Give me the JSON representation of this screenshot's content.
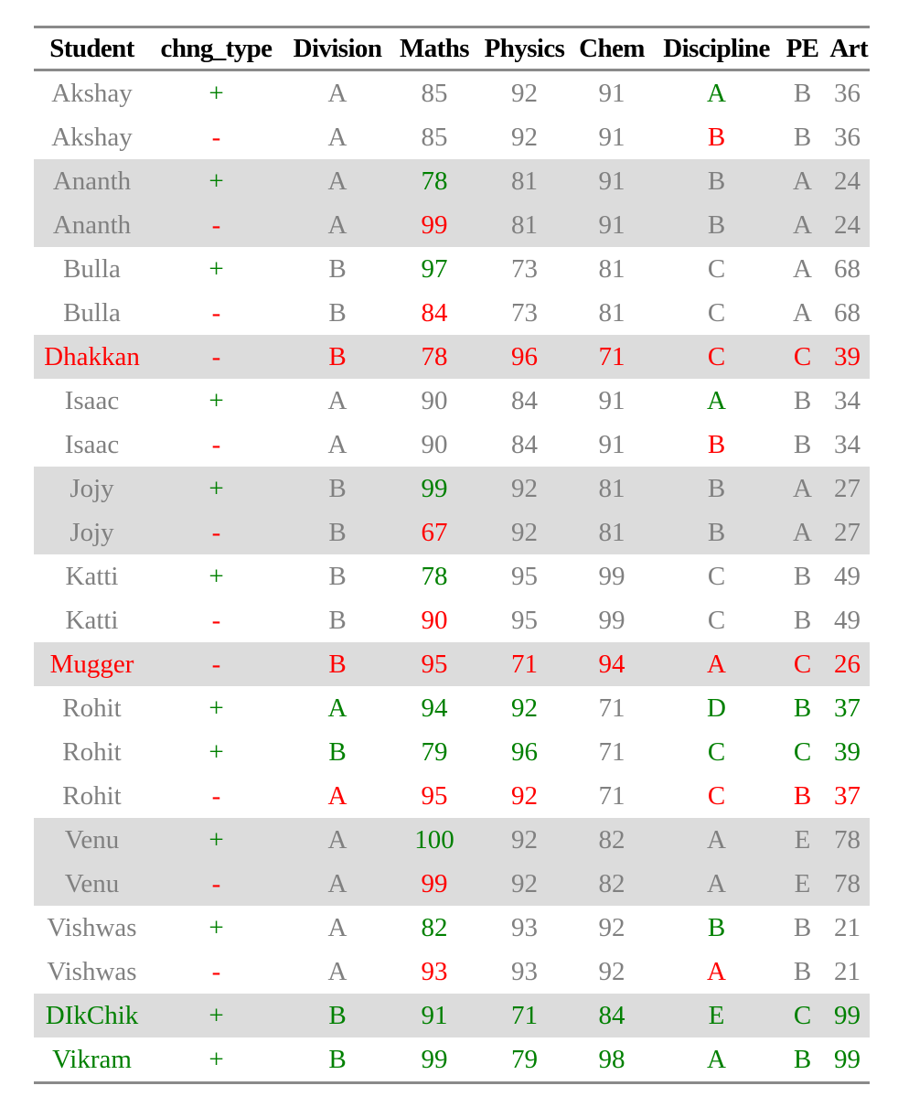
{
  "columns": [
    "Student",
    "chng_type",
    "Division",
    "Maths",
    "Physics",
    "Chem",
    "Discipline",
    "PE",
    "Art"
  ],
  "colors": {
    "green": "#008000",
    "red": "#ff0000",
    "gray": "#808080",
    "shade": "#dcdcdc"
  },
  "rows": [
    {
      "cells": [
        "Akshay",
        "+",
        "A",
        "85",
        "92",
        "91",
        "A",
        "B",
        "36"
      ],
      "colors": [
        "k",
        "g",
        "k",
        "k",
        "k",
        "k",
        "g",
        "k",
        "k"
      ],
      "shade": false
    },
    {
      "cells": [
        "Akshay",
        "-",
        "A",
        "85",
        "92",
        "91",
        "B",
        "B",
        "36"
      ],
      "colors": [
        "k",
        "r",
        "k",
        "k",
        "k",
        "k",
        "r",
        "k",
        "k"
      ],
      "shade": false
    },
    {
      "cells": [
        "Ananth",
        "+",
        "A",
        "78",
        "81",
        "91",
        "B",
        "A",
        "24"
      ],
      "colors": [
        "k",
        "g",
        "k",
        "g",
        "k",
        "k",
        "k",
        "k",
        "k"
      ],
      "shade": true
    },
    {
      "cells": [
        "Ananth",
        "-",
        "A",
        "99",
        "81",
        "91",
        "B",
        "A",
        "24"
      ],
      "colors": [
        "k",
        "r",
        "k",
        "r",
        "k",
        "k",
        "k",
        "k",
        "k"
      ],
      "shade": true
    },
    {
      "cells": [
        "Bulla",
        "+",
        "B",
        "97",
        "73",
        "81",
        "C",
        "A",
        "68"
      ],
      "colors": [
        "k",
        "g",
        "k",
        "g",
        "k",
        "k",
        "k",
        "k",
        "k"
      ],
      "shade": false
    },
    {
      "cells": [
        "Bulla",
        "-",
        "B",
        "84",
        "73",
        "81",
        "C",
        "A",
        "68"
      ],
      "colors": [
        "k",
        "r",
        "k",
        "r",
        "k",
        "k",
        "k",
        "k",
        "k"
      ],
      "shade": false
    },
    {
      "cells": [
        "Dhakkan",
        "-",
        "B",
        "78",
        "96",
        "71",
        "C",
        "C",
        "39"
      ],
      "colors": [
        "r",
        "r",
        "r",
        "r",
        "r",
        "r",
        "r",
        "r",
        "r"
      ],
      "shade": true
    },
    {
      "cells": [
        "Isaac",
        "+",
        "A",
        "90",
        "84",
        "91",
        "A",
        "B",
        "34"
      ],
      "colors": [
        "k",
        "g",
        "k",
        "k",
        "k",
        "k",
        "g",
        "k",
        "k"
      ],
      "shade": false
    },
    {
      "cells": [
        "Isaac",
        "-",
        "A",
        "90",
        "84",
        "91",
        "B",
        "B",
        "34"
      ],
      "colors": [
        "k",
        "r",
        "k",
        "k",
        "k",
        "k",
        "r",
        "k",
        "k"
      ],
      "shade": false
    },
    {
      "cells": [
        "Jojy",
        "+",
        "B",
        "99",
        "92",
        "81",
        "B",
        "A",
        "27"
      ],
      "colors": [
        "k",
        "g",
        "k",
        "g",
        "k",
        "k",
        "k",
        "k",
        "k"
      ],
      "shade": true
    },
    {
      "cells": [
        "Jojy",
        "-",
        "B",
        "67",
        "92",
        "81",
        "B",
        "A",
        "27"
      ],
      "colors": [
        "k",
        "r",
        "k",
        "r",
        "k",
        "k",
        "k",
        "k",
        "k"
      ],
      "shade": true
    },
    {
      "cells": [
        "Katti",
        "+",
        "B",
        "78",
        "95",
        "99",
        "C",
        "B",
        "49"
      ],
      "colors": [
        "k",
        "g",
        "k",
        "g",
        "k",
        "k",
        "k",
        "k",
        "k"
      ],
      "shade": false
    },
    {
      "cells": [
        "Katti",
        "-",
        "B",
        "90",
        "95",
        "99",
        "C",
        "B",
        "49"
      ],
      "colors": [
        "k",
        "r",
        "k",
        "r",
        "k",
        "k",
        "k",
        "k",
        "k"
      ],
      "shade": false
    },
    {
      "cells": [
        "Mugger",
        "-",
        "B",
        "95",
        "71",
        "94",
        "A",
        "C",
        "26"
      ],
      "colors": [
        "r",
        "r",
        "r",
        "r",
        "r",
        "r",
        "r",
        "r",
        "r"
      ],
      "shade": true
    },
    {
      "cells": [
        "Rohit",
        "+",
        "A",
        "94",
        "92",
        "71",
        "D",
        "B",
        "37"
      ],
      "colors": [
        "k",
        "g",
        "g",
        "g",
        "g",
        "k",
        "g",
        "g",
        "g"
      ],
      "shade": false
    },
    {
      "cells": [
        "Rohit",
        "+",
        "B",
        "79",
        "96",
        "71",
        "C",
        "C",
        "39"
      ],
      "colors": [
        "k",
        "g",
        "g",
        "g",
        "g",
        "k",
        "g",
        "g",
        "g"
      ],
      "shade": false
    },
    {
      "cells": [
        "Rohit",
        "-",
        "A",
        "95",
        "92",
        "71",
        "C",
        "B",
        "37"
      ],
      "colors": [
        "k",
        "r",
        "r",
        "r",
        "r",
        "k",
        "r",
        "r",
        "r"
      ],
      "shade": false
    },
    {
      "cells": [
        "Venu",
        "+",
        "A",
        "100",
        "92",
        "82",
        "A",
        "E",
        "78"
      ],
      "colors": [
        "k",
        "g",
        "k",
        "g",
        "k",
        "k",
        "k",
        "k",
        "k"
      ],
      "shade": true
    },
    {
      "cells": [
        "Venu",
        "-",
        "A",
        "99",
        "92",
        "82",
        "A",
        "E",
        "78"
      ],
      "colors": [
        "k",
        "r",
        "k",
        "r",
        "k",
        "k",
        "k",
        "k",
        "k"
      ],
      "shade": true
    },
    {
      "cells": [
        "Vishwas",
        "+",
        "A",
        "82",
        "93",
        "92",
        "B",
        "B",
        "21"
      ],
      "colors": [
        "k",
        "g",
        "k",
        "g",
        "k",
        "k",
        "g",
        "k",
        "k"
      ],
      "shade": false
    },
    {
      "cells": [
        "Vishwas",
        "-",
        "A",
        "93",
        "93",
        "92",
        "A",
        "B",
        "21"
      ],
      "colors": [
        "k",
        "r",
        "k",
        "r",
        "k",
        "k",
        "r",
        "k",
        "k"
      ],
      "shade": false
    },
    {
      "cells": [
        "DIkChik",
        "+",
        "B",
        "91",
        "71",
        "84",
        "E",
        "C",
        "99"
      ],
      "colors": [
        "g",
        "g",
        "g",
        "g",
        "g",
        "g",
        "g",
        "g",
        "g"
      ],
      "shade": true
    },
    {
      "cells": [
        "Vikram",
        "+",
        "B",
        "99",
        "79",
        "98",
        "A",
        "B",
        "99"
      ],
      "colors": [
        "g",
        "g",
        "g",
        "g",
        "g",
        "g",
        "g",
        "g",
        "g"
      ],
      "shade": false
    }
  ]
}
